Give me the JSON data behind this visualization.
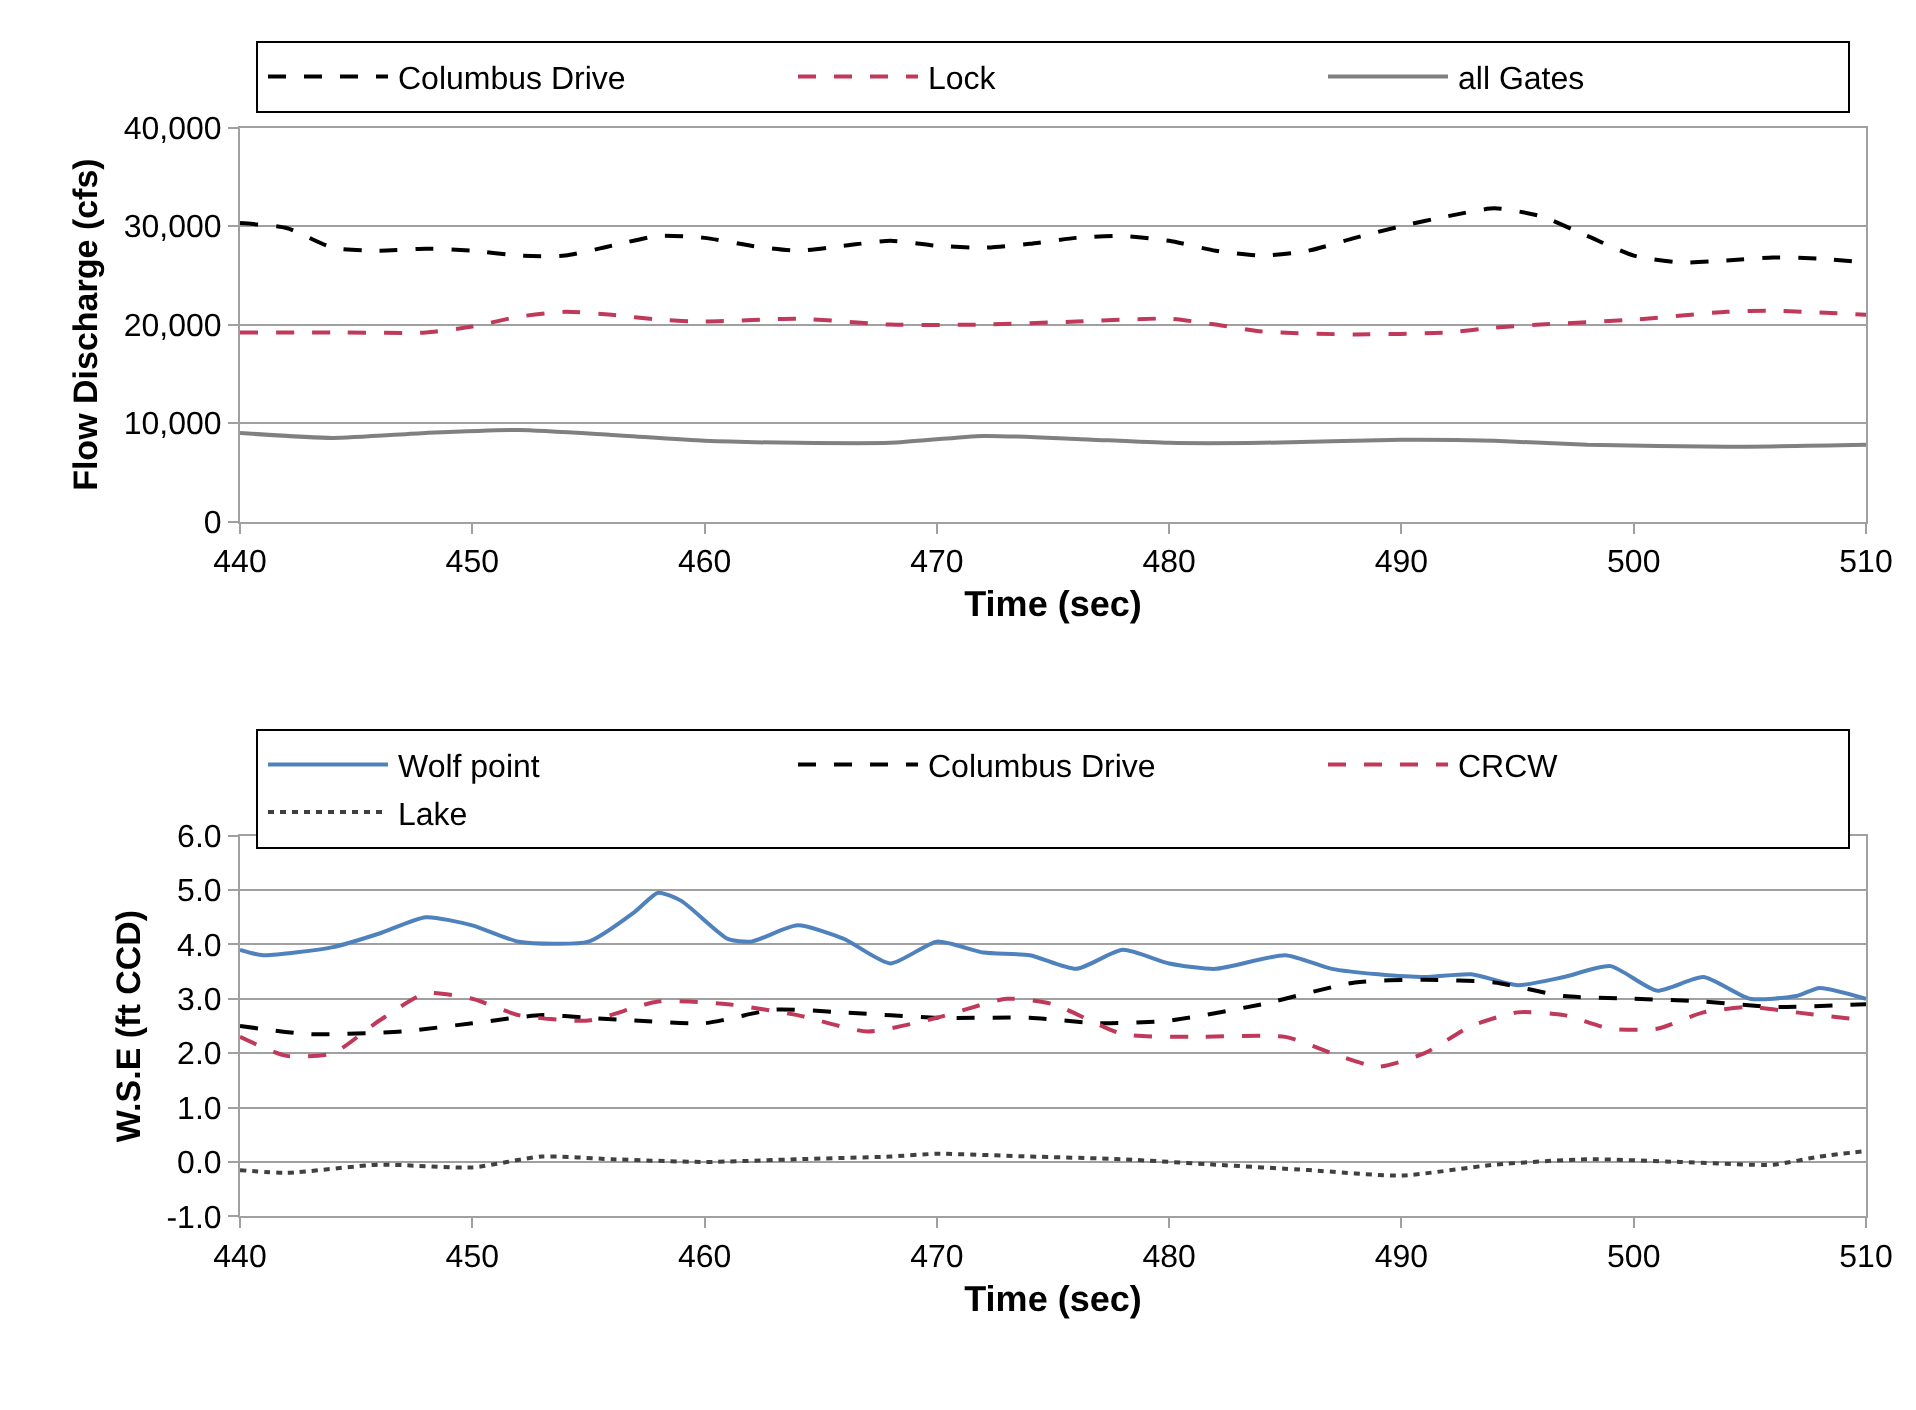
{
  "chart_data": [
    {
      "type": "line",
      "xlabel": "Time (sec)",
      "ylabel": "Flow Discharge (cfs)",
      "xlim": [
        440,
        510
      ],
      "xticks": [
        440,
        450,
        460,
        470,
        480,
        490,
        500,
        510
      ],
      "ylim": [
        0,
        40000
      ],
      "yticks": [
        {
          "value": 0,
          "label": "0"
        },
        {
          "value": 10000,
          "label": "10,000"
        },
        {
          "value": 20000,
          "label": "20,000"
        },
        {
          "value": 30000,
          "label": "30,000"
        },
        {
          "value": 40000,
          "label": "40,000"
        }
      ],
      "grid": "y",
      "legend": "top",
      "marker": "none",
      "series": [
        {
          "name": "Columbus Drive",
          "color": "#000000",
          "line_style": "dashed",
          "x": [
            440,
            442,
            444,
            446,
            448,
            450,
            452,
            454,
            456,
            458,
            460,
            462,
            464,
            466,
            468,
            470,
            472,
            474,
            476,
            478,
            480,
            482,
            484,
            486,
            488,
            490,
            492,
            494,
            496,
            498,
            500,
            502,
            504,
            506,
            508,
            510
          ],
          "values": [
            30300,
            29800,
            27800,
            27500,
            27700,
            27500,
            27000,
            27000,
            28000,
            29000,
            28800,
            28000,
            27500,
            28000,
            28500,
            28000,
            27800,
            28200,
            28800,
            29000,
            28500,
            27500,
            27000,
            27500,
            28800,
            30000,
            31000,
            31800,
            31000,
            29000,
            27000,
            26300,
            26500,
            26800,
            26700,
            26300
          ]
        },
        {
          "name": "Lock",
          "color": "#c0395a",
          "line_style": "dashed",
          "x": [
            440,
            444,
            448,
            450,
            452,
            454,
            456,
            458,
            460,
            464,
            468,
            472,
            476,
            480,
            482,
            484,
            488,
            492,
            494,
            496,
            500,
            504,
            506,
            510
          ],
          "values": [
            19200,
            19200,
            19200,
            19800,
            20800,
            21300,
            21000,
            20500,
            20300,
            20600,
            20000,
            20000,
            20300,
            20600,
            20000,
            19300,
            19000,
            19200,
            19700,
            20000,
            20500,
            21300,
            21400,
            21000
          ]
        },
        {
          "name": "all Gates",
          "color": "#808080",
          "line_style": "solid",
          "x": [
            440,
            444,
            448,
            452,
            456,
            460,
            464,
            468,
            472,
            476,
            480,
            484,
            490,
            494,
            498,
            504,
            510
          ],
          "values": [
            9000,
            8500,
            9000,
            9300,
            8800,
            8200,
            8000,
            8000,
            8700,
            8400,
            8000,
            8000,
            8300,
            8200,
            7800,
            7600,
            7800
          ]
        }
      ]
    },
    {
      "type": "line",
      "xlabel": "Time (sec)",
      "ylabel": "W.S.E (ft CCD)",
      "xlim": [
        440,
        510
      ],
      "xticks": [
        440,
        450,
        460,
        470,
        480,
        490,
        500,
        510
      ],
      "ylim": [
        -1,
        6
      ],
      "yticks": [
        {
          "value": -1,
          "label": "-1.0"
        },
        {
          "value": 0,
          "label": "0.0"
        },
        {
          "value": 1,
          "label": "1.0"
        },
        {
          "value": 2,
          "label": "2.0"
        },
        {
          "value": 3,
          "label": "3.0"
        },
        {
          "value": 4,
          "label": "4.0"
        },
        {
          "value": 5,
          "label": "5.0"
        },
        {
          "value": 6,
          "label": "6.0"
        }
      ],
      "grid": "y",
      "legend": "top",
      "marker": "none",
      "series": [
        {
          "name": "Wolf point",
          "color": "#4f81bd",
          "line_style": "solid",
          "x": [
            440,
            441,
            444,
            446,
            448,
            450,
            452,
            455,
            457,
            458,
            459,
            461,
            462,
            464,
            466,
            468,
            470,
            472,
            474,
            476,
            478,
            480,
            482,
            485,
            487,
            489,
            491,
            493,
            495,
            497,
            499,
            501,
            503,
            505,
            507,
            508,
            510
          ],
          "values": [
            3.9,
            3.8,
            3.95,
            4.2,
            4.5,
            4.35,
            4.05,
            4.05,
            4.6,
            4.95,
            4.8,
            4.1,
            4.05,
            4.35,
            4.1,
            3.65,
            4.05,
            3.85,
            3.8,
            3.55,
            3.9,
            3.65,
            3.55,
            3.8,
            3.55,
            3.45,
            3.4,
            3.45,
            3.25,
            3.4,
            3.6,
            3.15,
            3.4,
            3.0,
            3.05,
            3.2,
            3.0
          ]
        },
        {
          "name": "Columbus Drive",
          "color": "#000000",
          "line_style": "dashed",
          "x": [
            440,
            443,
            447,
            450,
            453,
            455,
            457,
            460,
            463,
            466,
            470,
            474,
            477,
            480,
            484,
            488,
            491,
            494,
            497,
            500,
            503,
            506,
            510
          ],
          "values": [
            2.5,
            2.35,
            2.4,
            2.55,
            2.7,
            2.65,
            2.6,
            2.55,
            2.8,
            2.75,
            2.65,
            2.65,
            2.55,
            2.6,
            2.9,
            3.3,
            3.35,
            3.3,
            3.05,
            3.0,
            2.95,
            2.85,
            2.9
          ]
        },
        {
          "name": "CRCW",
          "color": "#c0395a",
          "line_style": "dashed",
          "x": [
            440,
            442,
            444,
            446,
            448,
            450,
            452,
            455,
            458,
            461,
            464,
            467,
            470,
            473,
            475,
            478,
            481,
            485,
            487,
            489,
            491,
            493,
            495,
            497,
            499,
            501,
            503,
            505,
            507,
            510
          ],
          "values": [
            2.3,
            1.95,
            2.0,
            2.6,
            3.1,
            3.0,
            2.7,
            2.6,
            2.95,
            2.9,
            2.7,
            2.4,
            2.65,
            3.0,
            2.9,
            2.35,
            2.3,
            2.3,
            2.0,
            1.75,
            2.0,
            2.5,
            2.75,
            2.7,
            2.45,
            2.45,
            2.75,
            2.85,
            2.75,
            2.6
          ]
        },
        {
          "name": "Lake",
          "color": "#404040",
          "line_style": "dotted",
          "x": [
            440,
            442,
            446,
            450,
            453,
            456,
            460,
            464,
            468,
            470,
            474,
            478,
            482,
            486,
            490,
            494,
            498,
            502,
            506,
            508,
            510
          ],
          "values": [
            -0.15,
            -0.2,
            -0.05,
            -0.1,
            0.1,
            0.05,
            0.0,
            0.05,
            0.1,
            0.15,
            0.1,
            0.05,
            -0.05,
            -0.15,
            -0.25,
            -0.05,
            0.05,
            0.0,
            -0.05,
            0.1,
            0.2
          ]
        }
      ]
    }
  ]
}
